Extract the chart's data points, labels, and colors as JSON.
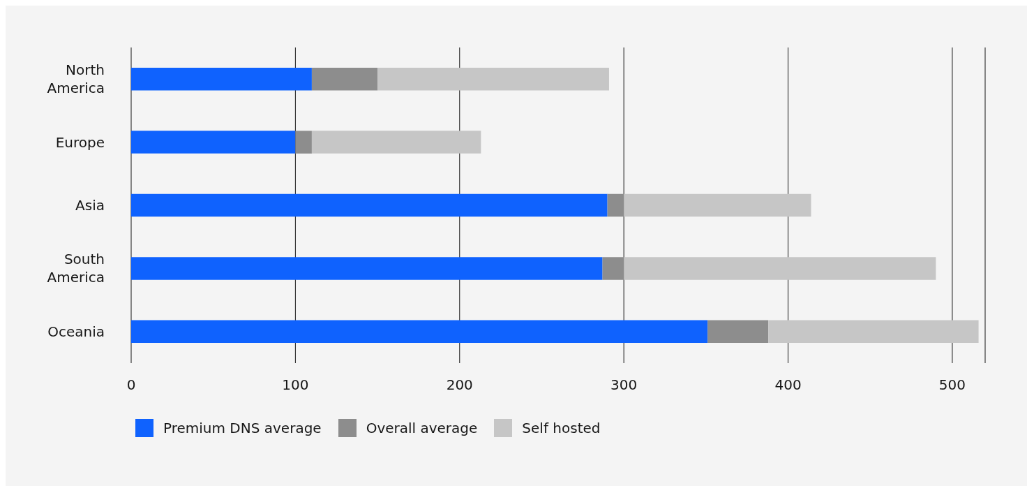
{
  "chart_data": {
    "type": "bar",
    "orientation": "horizontal",
    "stacked": true,
    "categories": [
      "North America",
      "Europe",
      "Asia",
      "South America",
      "Oceania"
    ],
    "series": [
      {
        "name": "Premium DNS average",
        "color": "#0f62fe",
        "values": [
          110,
          100,
          290,
          287,
          351
        ]
      },
      {
        "name": "Overall average",
        "color": "#8d8d8d",
        "values": [
          40,
          10,
          10,
          13,
          37
        ]
      },
      {
        "name": "Self hosted",
        "color": "#c6c6c6",
        "values": [
          141,
          103,
          114,
          190,
          128
        ]
      }
    ],
    "xlim": [
      0,
      520
    ],
    "xticks": [
      0,
      100,
      200,
      300,
      400,
      500
    ],
    "grid": "x",
    "legend": "bottom left"
  }
}
